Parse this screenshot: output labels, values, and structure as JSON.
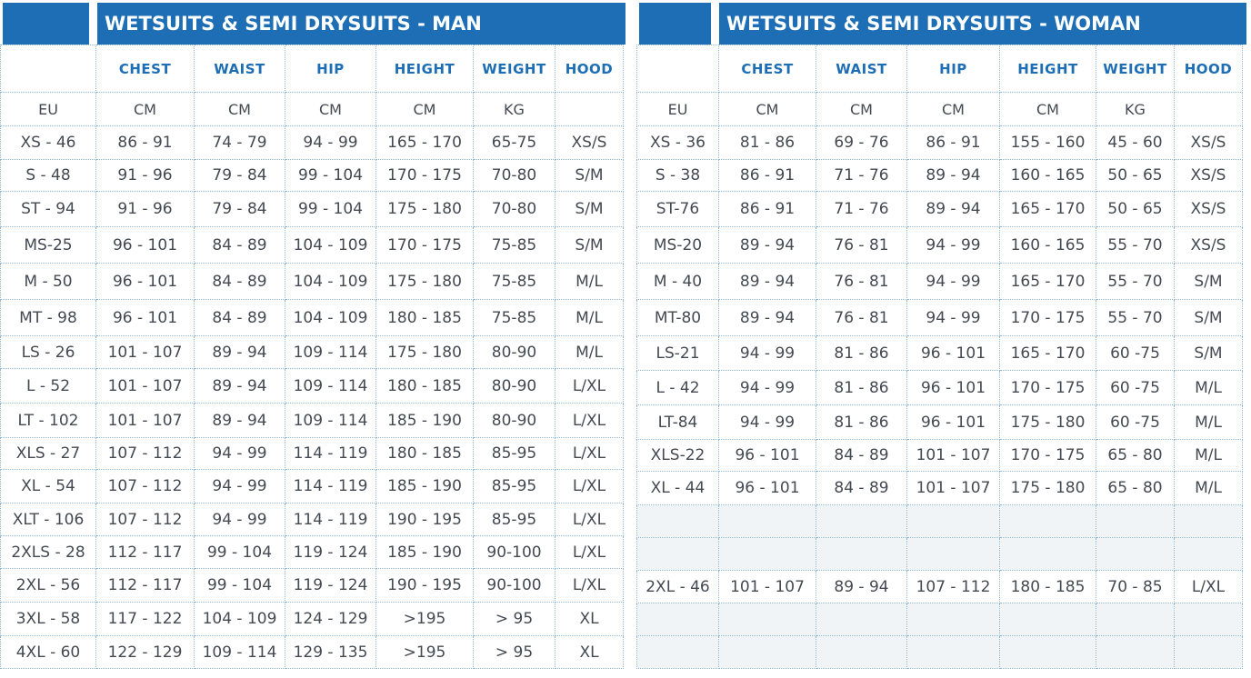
{
  "man": {
    "title": "WETSUITS & SEMI DRYSUITS - MAN",
    "headers": [
      "",
      "CHEST",
      "WAIST",
      "HIP",
      "HEIGHT",
      "WEIGHT",
      "HOOD"
    ],
    "units": [
      "EU",
      "CM",
      "CM",
      "CM",
      "CM",
      "KG",
      ""
    ],
    "rows": [
      [
        "XS - 46",
        "86 - 91",
        "74 - 79",
        "94 - 99",
        "165 - 170",
        "65-75",
        "XS/S"
      ],
      [
        "S - 48",
        "91 - 96",
        "79 - 84",
        "99 - 104",
        "170 - 175",
        "70-80",
        "S/M"
      ],
      [
        "ST - 94",
        "91 - 96",
        "79 - 84",
        "99 - 104",
        "175 - 180",
        "70-80",
        "S/M"
      ],
      [
        "MS-25",
        "96 - 101",
        "84 - 89",
        "104 - 109",
        "170 - 175",
        "75-85",
        "S/M"
      ],
      [
        "M - 50",
        "96 - 101",
        "84 - 89",
        "104 - 109",
        "175 - 180",
        "75-85",
        "M/L"
      ],
      [
        "MT - 98",
        "96 - 101",
        "84 - 89",
        "104 - 109",
        "180 - 185",
        "75-85",
        "M/L"
      ],
      [
        "LS - 26",
        "101 - 107",
        "89 - 94",
        "109 - 114",
        "175 - 180",
        "80-90",
        "M/L"
      ],
      [
        "L - 52",
        "101 - 107",
        "89 - 94",
        "109 - 114",
        "180 - 185",
        "80-90",
        "L/XL"
      ],
      [
        "LT - 102",
        "101 - 107",
        "89 - 94",
        "109 - 114",
        "185 - 190",
        "80-90",
        "L/XL"
      ],
      [
        "XLS - 27",
        "107 - 112",
        "94 - 99",
        "114 - 119",
        "180 - 185",
        "85-95",
        "L/XL"
      ],
      [
        "XL - 54",
        "107 - 112",
        "94 - 99",
        "114 - 119",
        "185 - 190",
        "85-95",
        "L/XL"
      ],
      [
        "XLT - 106",
        "107 - 112",
        "94 - 99",
        "114 - 119",
        "190 - 195",
        "85-95",
        "L/XL"
      ],
      [
        "2XLS - 28",
        "112 - 117",
        "99 - 104",
        "119 - 124",
        "185 - 190",
        "90-100",
        "L/XL"
      ],
      [
        "2XL - 56",
        "112 - 117",
        "99 - 104",
        "119 - 124",
        "190 - 195",
        "90-100",
        "L/XL"
      ],
      [
        "3XL - 58",
        "117 - 122",
        "104 - 109",
        "124 - 129",
        ">195",
        "> 95",
        "XL"
      ],
      [
        "4XL - 60",
        "122 - 129",
        "109 - 114",
        "129 - 135",
        ">195",
        "> 95",
        "XL"
      ]
    ]
  },
  "woman": {
    "title": "WETSUITS & SEMI DRYSUITS - WOMAN",
    "headers": [
      "",
      "CHEST",
      "WAIST",
      "HIP",
      "HEIGHT",
      "WEIGHT",
      "HOOD"
    ],
    "units": [
      "EU",
      "CM",
      "CM",
      "CM",
      "CM",
      "KG",
      ""
    ],
    "rows": [
      [
        "XS - 36",
        "81 - 86",
        "69 - 76",
        "86 - 91",
        "155 - 160",
        "45 - 60",
        "XS/S"
      ],
      [
        "S - 38",
        "86 - 91",
        "71 - 76",
        "89 - 94",
        "160 - 165",
        "50 - 65",
        "XS/S"
      ],
      [
        "ST-76",
        "86 - 91",
        "71 - 76",
        "89 - 94",
        "165 - 170",
        "50 - 65",
        "XS/S"
      ],
      [
        "MS-20",
        "89 - 94",
        "76 - 81",
        "94 - 99",
        "160 - 165",
        "55 - 70",
        "XS/S"
      ],
      [
        "M - 40",
        "89 - 94",
        "76 - 81",
        "94 - 99",
        "165 - 170",
        "55 - 70",
        "S/M"
      ],
      [
        "MT-80",
        "89 - 94",
        "76 - 81",
        "94 - 99",
        "170 - 175",
        "55 - 70",
        "S/M"
      ],
      [
        "LS-21",
        "94 - 99",
        "81 - 86",
        "96 - 101",
        "165 - 170",
        "60 -75",
        "S/M"
      ],
      [
        "L - 42",
        "94 - 99",
        "81 - 86",
        "96 - 101",
        "170 - 175",
        "60 -75",
        "M/L"
      ],
      [
        "LT-84",
        "94 - 99",
        "81 - 86",
        "96 - 101",
        "175 - 180",
        "60 -75",
        "M/L"
      ],
      [
        "XLS-22",
        "96 - 101",
        "84 - 89",
        "101 - 107",
        "170 - 175",
        "65 - 80",
        "M/L"
      ],
      [
        "XL - 44",
        "96 - 101",
        "84 - 89",
        "101 - 107",
        "175 - 180",
        "65 - 80",
        "M/L"
      ],
      [
        "",
        "",
        "",
        "",
        "",
        "",
        ""
      ],
      [
        "",
        "",
        "",
        "",
        "",
        "",
        ""
      ],
      [
        "2XL - 46",
        "101 - 107",
        "89 - 94",
        "107 - 112",
        "180 - 185",
        "70 - 85",
        "L/XL"
      ],
      [
        "",
        "",
        "",
        "",
        "",
        "",
        ""
      ],
      [
        "",
        "",
        "",
        "",
        "",
        "",
        ""
      ]
    ]
  },
  "colors": {
    "accent": "#1d6eb4",
    "text": "#444a52",
    "grid": "#8fb7d8",
    "empty_cell": "#f1f4f7"
  }
}
